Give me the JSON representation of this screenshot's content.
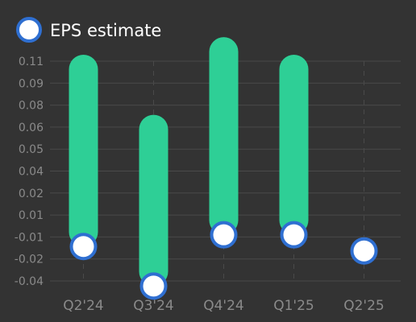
{
  "chart_data": {
    "type": "bar",
    "categories": [
      "Q2'24",
      "Q3'24",
      "Q4'24",
      "Q1'25",
      "Q2'25"
    ],
    "series": [
      {
        "name": "",
        "kind": "range-bar",
        "low": [
          -0.0165,
          -0.0435,
          -0.0085,
          -0.0085,
          null
        ],
        "high": [
          0.1045,
          0.0635,
          0.1165,
          0.1045,
          null
        ],
        "color": "#2ecf96"
      },
      {
        "name": "EPS estimate",
        "kind": "marker",
        "values": [
          -0.0165,
          -0.0435,
          -0.0085,
          -0.0085,
          -0.0195
        ],
        "color": "#ffffff",
        "stroke": "#2f6fd1"
      }
    ],
    "y_ticks": [
      "0.11",
      "0.09",
      "0.08",
      "0.06",
      "0.05",
      "0.04",
      "0.02",
      "0.01",
      "-0.01",
      "-0.02",
      "-0.04"
    ],
    "ylim": [
      -0.045,
      0.12
    ],
    "grid": true,
    "legend": "top-left",
    "colors": {
      "background": "#333333",
      "grid": "#4a4a4a",
      "text": "#8a8a8a"
    }
  }
}
